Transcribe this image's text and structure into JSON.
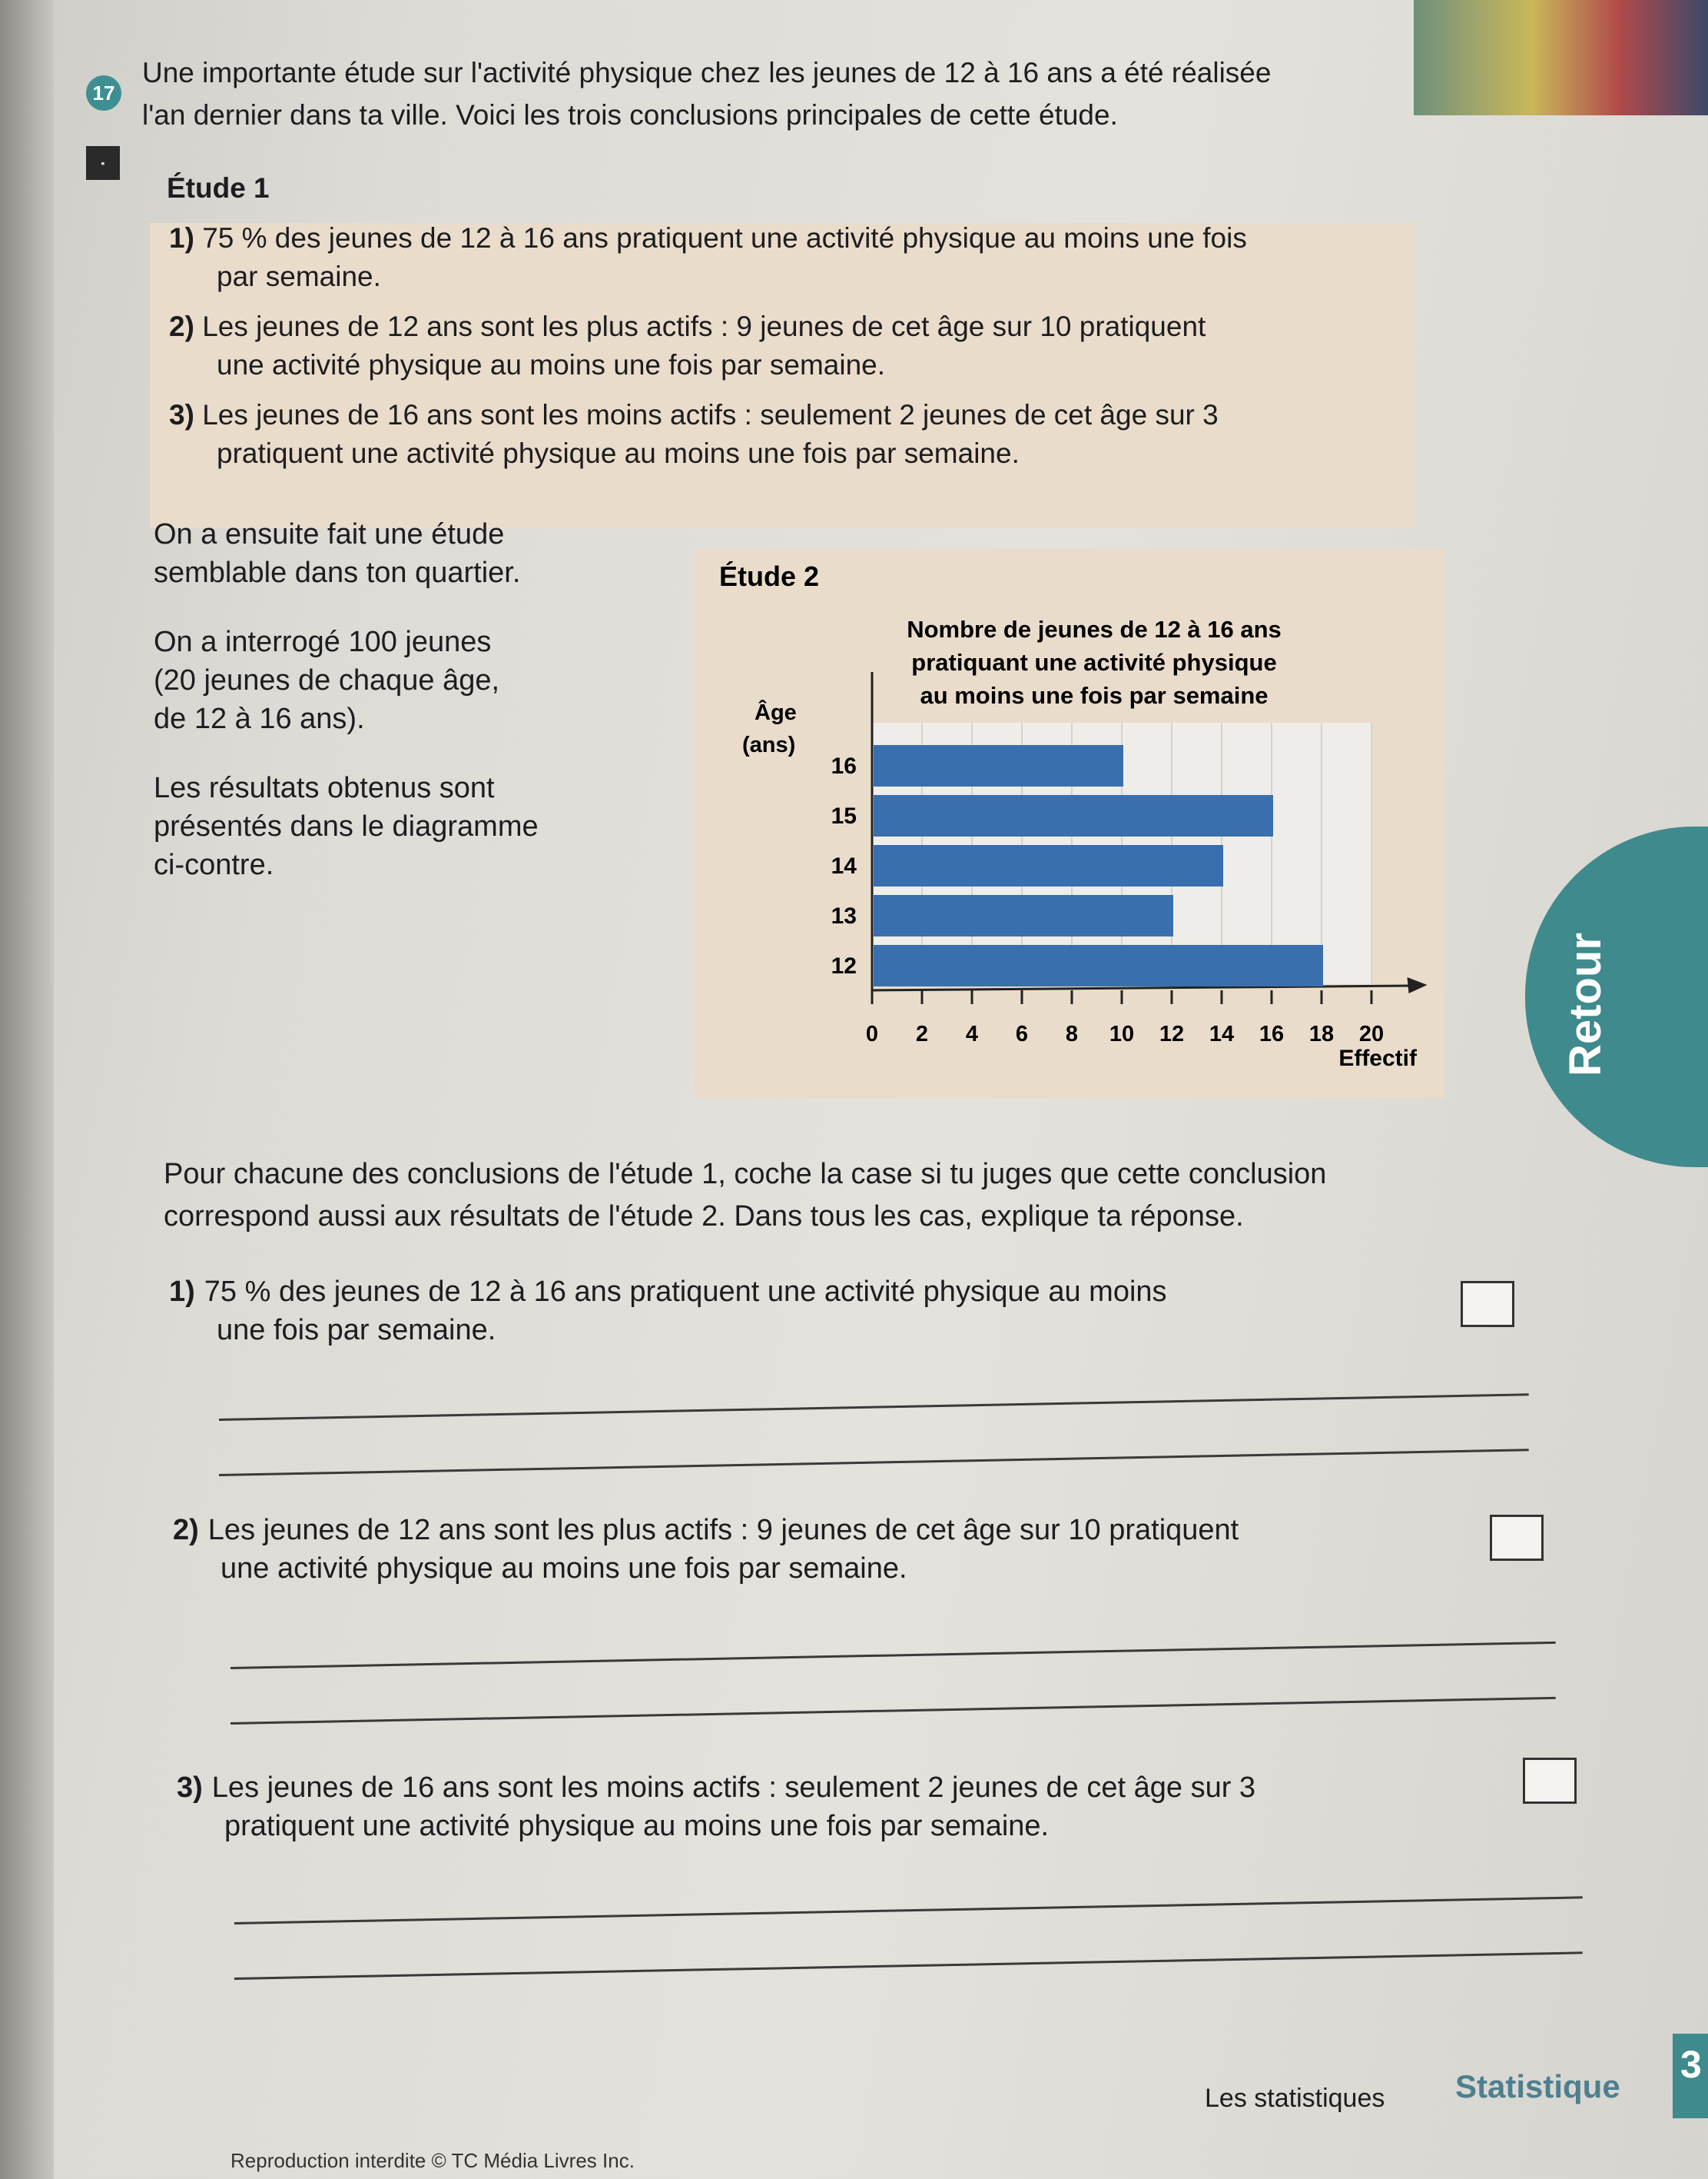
{
  "exercise": {
    "number": "17",
    "intro_line1": "Une importante étude sur l'activité physique chez les jeunes de 12 à 16 ans a été réalisée",
    "intro_line2": "l'an dernier dans ta ville. Voici les trois conclusions principales de cette étude."
  },
  "study1": {
    "title": "Étude 1",
    "conclusions": [
      {
        "num": "1)",
        "line1": "75 % des jeunes de 12 à 16 ans pratiquent une activité physique au moins une fois",
        "line2": "par semaine."
      },
      {
        "num": "2)",
        "line1": "Les jeunes de 12 ans sont les plus actifs : 9 jeunes de cet âge sur 10 pratiquent",
        "line2": "une activité physique au moins une fois par semaine."
      },
      {
        "num": "3)",
        "line1": "Les jeunes de 16 ans sont les moins actifs : seulement 2 jeunes de cet âge sur 3",
        "line2": "pratiquent une activité physique au moins une fois par semaine."
      }
    ]
  },
  "left_text": {
    "p1a": "On a ensuite fait une étude",
    "p1b": "semblable dans ton quartier.",
    "p2a": "On a interrogé 100 jeunes",
    "p2b": "(20 jeunes de chaque âge,",
    "p2c": "de 12 à 16 ans).",
    "p3a": "Les résultats obtenus sont",
    "p3b": "présentés dans le diagramme",
    "p3c": "ci-contre."
  },
  "chart_data": {
    "type": "bar",
    "orientation": "horizontal",
    "panel_label": "Étude 2",
    "title_lines": [
      "Nombre de jeunes de 12 à 16 ans",
      "pratiquant une activité physique",
      "au moins une fois par semaine"
    ],
    "ylabel_lines": [
      "Âge",
      "(ans)"
    ],
    "xlabel": "Effectif",
    "categories": [
      "12",
      "13",
      "14",
      "15",
      "16"
    ],
    "values": [
      18,
      12,
      14,
      16,
      10
    ],
    "xlim": [
      0,
      20
    ],
    "xticks": [
      "0",
      "2",
      "4",
      "6",
      "8",
      "10",
      "12",
      "14",
      "16",
      "18",
      "20"
    ],
    "grid": true,
    "bar_color": "#3a6fae"
  },
  "questions": {
    "instruction1": "Pour chacune des conclusions de l'étude 1, coche la case si tu juges que cette conclusion",
    "instruction2": "correspond aussi aux résultats de l'étude 2. Dans tous les cas, explique ta réponse.",
    "items": [
      {
        "num": "1)",
        "line1": "75 % des jeunes de 12 à 16 ans pratiquent une activité physique au moins",
        "line2": "une fois par semaine.",
        "checked": false
      },
      {
        "num": "2)",
        "line1": "Les jeunes de 12 ans sont les plus actifs : 9 jeunes de cet âge sur 10 pratiquent",
        "line2": "une activité physique au moins une fois par semaine.",
        "checked": false
      },
      {
        "num": "3)",
        "line1": "Les jeunes de 16 ans sont les moins actifs : seulement 2 jeunes de cet âge sur 3",
        "line2": "pratiquent une activité physique au moins une fois par semaine.",
        "checked": false
      }
    ]
  },
  "side_tab": {
    "label": "Retour",
    "color": "#3e8a8c"
  },
  "footer": {
    "chapter": "Les statistiques",
    "section": "Statistique",
    "page_number": "3",
    "copyright": "Reproduction interdite © TC Média Livres Inc."
  },
  "colors": {
    "accent": "#3e8a8c",
    "panel": "#eadccb"
  }
}
